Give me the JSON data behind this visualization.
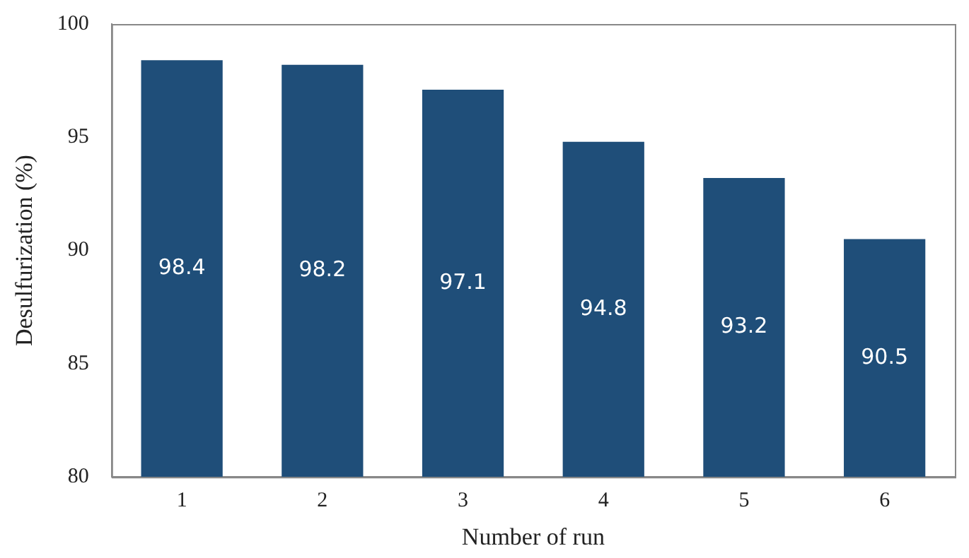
{
  "chart_data": {
    "type": "bar",
    "xlabel": "Number of run",
    "ylabel": "Desulfurization (%)",
    "categories": [
      "1",
      "2",
      "3",
      "4",
      "5",
      "6"
    ],
    "values": [
      98.4,
      98.2,
      97.1,
      94.8,
      93.2,
      90.5
    ],
    "color": "#1f4e79",
    "ylim": [
      80,
      100
    ],
    "yticks": [
      80,
      85,
      90,
      95,
      100
    ],
    "grid": false,
    "legend": false,
    "data_labels": true
  }
}
